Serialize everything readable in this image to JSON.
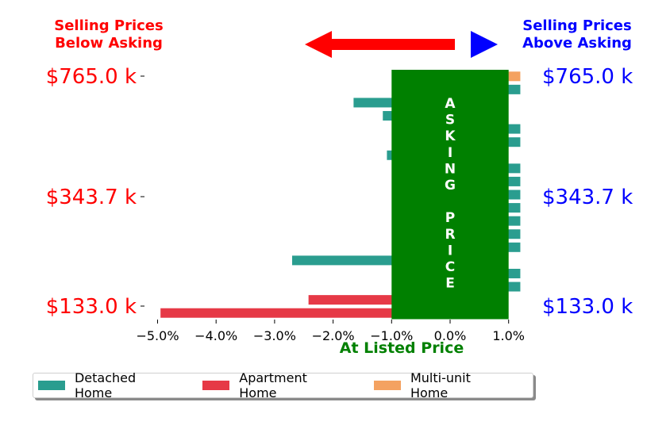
{
  "chart_data": {
    "type": "bar",
    "orientation": "horizontal",
    "x": {
      "ticks": [
        -5,
        -4,
        -3,
        -2,
        -1,
        0,
        1
      ],
      "tick_labels": [
        "−5.0%",
        "−4.0%",
        "−3.0%",
        "−2.0%",
        "−1.0%",
        "0.0%",
        "1.0%"
      ],
      "lim": [
        -5.3,
        1.3
      ],
      "label": "At Listed Price"
    },
    "y": {
      "tick_labels": [
        "$765.0 k",
        "$343.7 k",
        "$133.0 k"
      ],
      "tick_values": [
        765.0,
        343.7,
        133.0
      ]
    },
    "bars": [
      {
        "series": "Multi-unit Home",
        "value": 1.2
      },
      {
        "series": "Detached Home",
        "value": 1.2
      },
      {
        "series": "Detached Home",
        "value": -1.65
      },
      {
        "series": "Detached Home",
        "value": -1.15
      },
      {
        "series": "Detached Home",
        "value": 1.2
      },
      {
        "series": "Detached Home",
        "value": 1.2
      },
      {
        "series": "Detached Home",
        "value": -1.08
      },
      {
        "series": "Detached Home",
        "value": 1.2
      },
      {
        "series": "Detached Home",
        "value": 1.2
      },
      {
        "series": "Detached Home",
        "value": 1.2
      },
      {
        "series": "Detached Home",
        "value": 1.2
      },
      {
        "series": "Detached Home",
        "value": 1.2
      },
      {
        "series": "Detached Home",
        "value": 1.2
      },
      {
        "series": "Detached Home",
        "value": 1.2
      },
      {
        "series": "Detached Home",
        "value": -2.7
      },
      {
        "series": "Detached Home",
        "value": 1.2
      },
      {
        "series": "Detached Home",
        "value": 1.2
      },
      {
        "series": "Apartment Home",
        "value": -2.42
      },
      {
        "series": "Apartment Home",
        "value": -4.95
      }
    ],
    "legend": {
      "placement": "bottom-left",
      "entries": [
        {
          "name": "Detached Home",
          "color": "#2a9d8f"
        },
        {
          "name": "Apartment Home",
          "color": "#e63946"
        },
        {
          "name": "Multi-unit Home",
          "color": "#f4a261"
        }
      ]
    },
    "annotations": {
      "left_header": [
        "Selling Prices",
        "Below Asking"
      ],
      "right_header": [
        "Selling Prices",
        "Above Asking"
      ],
      "band_text": "ASKING PRICE"
    },
    "colors": {
      "below": "#ff0000",
      "above": "#0000ff",
      "band": "#008000",
      "axis_label": "#008000"
    }
  }
}
